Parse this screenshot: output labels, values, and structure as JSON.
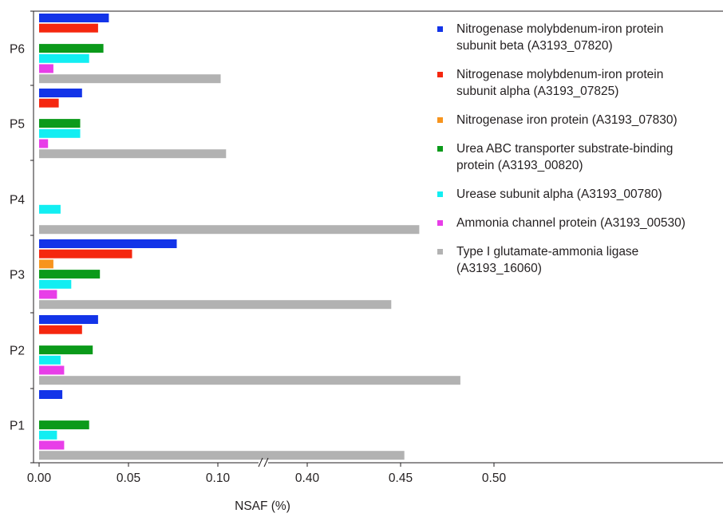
{
  "chart_data": {
    "type": "bar",
    "orientation": "horizontal",
    "title": "",
    "xlabel": "NSAF (%)",
    "ylabel": "",
    "categories": [
      "P1",
      "P2",
      "P3",
      "P4",
      "P5",
      "P6"
    ],
    "x_axis": {
      "broken": true,
      "break_between": [
        0.1,
        0.4
      ],
      "tick_labels": [
        "0.00",
        "0.05",
        "0.10",
        "0.40",
        "0.45",
        "0.50"
      ]
    },
    "series": [
      {
        "name": "Nitrogenase molybdenum-iron protein\nsubunit beta (A3193_07820)",
        "color": "#1334e8",
        "values": [
          0.013,
          0.033,
          0.077,
          0,
          0.024,
          0.039
        ]
      },
      {
        "name": "Nitrogenase molybdenum-iron protein\nsubunit alpha (A3193_07825)",
        "color": "#f5270f",
        "values": [
          0,
          0.024,
          0.052,
          0,
          0.011,
          0.033
        ]
      },
      {
        "name": "Nitrogenase iron protein (A3193_07830)",
        "color": "#f7941d",
        "values": [
          0,
          0,
          0.008,
          0,
          0,
          0
        ]
      },
      {
        "name": "Urea ABC transporter substrate-binding\nprotein (A3193_00820)",
        "color": "#0b9a1a",
        "values": [
          0.028,
          0.03,
          0.034,
          0,
          0.023,
          0.036
        ]
      },
      {
        "name": "Urease subunit alpha (A3193_00780)",
        "color": "#12eef2",
        "values": [
          0.01,
          0.012,
          0.018,
          0.012,
          0.023,
          0.028
        ]
      },
      {
        "name": "Ammonia channel protein (A3193_00530)",
        "color": "#e83ee8",
        "values": [
          0.014,
          0.014,
          0.01,
          0,
          0.005,
          0.008
        ]
      },
      {
        "name": "Type I glutamate-ammonia ligase\n(A3193_16060)",
        "color": "#b2b2b2",
        "values": [
          0.452,
          0.482,
          0.445,
          0.46,
          0.13,
          0.112
        ]
      }
    ],
    "legend_position": "top-right",
    "grid": false
  }
}
